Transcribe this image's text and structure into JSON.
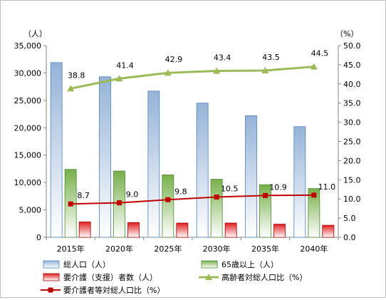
{
  "chart_data": {
    "type": "bar",
    "categories": [
      "2015年",
      "2020年",
      "2025年",
      "2030年",
      "2035年",
      "2040年"
    ],
    "y_left": {
      "unit": "（人）",
      "ylim": [
        0,
        35000
      ],
      "ticks": [
        "0",
        "5,000",
        "10,000",
        "15,000",
        "20,000",
        "25,000",
        "30,000",
        "35,000"
      ],
      "tick_values": [
        0,
        5000,
        10000,
        15000,
        20000,
        25000,
        30000,
        35000
      ]
    },
    "y_right": {
      "unit": "（%）",
      "ylim": [
        0,
        50
      ],
      "ticks": [
        "0.0",
        "5.0",
        "10.0",
        "15.0",
        "20.0",
        "25.0",
        "30.0",
        "35.0",
        "40.0",
        "45.0",
        "50.0"
      ],
      "tick_values": [
        0,
        5,
        10,
        15,
        20,
        25,
        30,
        35,
        40,
        45,
        50
      ]
    },
    "series": [
      {
        "name": "総人口（人）",
        "kind": "bar",
        "axis": "left",
        "color": "#95b3d7",
        "values": [
          31900,
          29300,
          26700,
          24500,
          22200,
          20200
        ]
      },
      {
        "name": "65歳以上（人）",
        "kind": "bar",
        "axis": "left",
        "color": "#77b04b",
        "values": [
          12400,
          12100,
          11400,
          10600,
          9600,
          8900
        ]
      },
      {
        "name": "要介護（支援）者数（人）",
        "kind": "bar",
        "axis": "left",
        "color": "#e02020",
        "values": [
          2800,
          2700,
          2600,
          2600,
          2400,
          2200
        ]
      },
      {
        "name": "高齢者対総人口比（%）",
        "kind": "line",
        "axis": "right",
        "color": "#9bbb59",
        "values": [
          38.8,
          41.4,
          42.9,
          43.4,
          43.5,
          44.5
        ],
        "labels": [
          "38.8",
          "41.4",
          "42.9",
          "43.4",
          "43.5",
          "44.5"
        ]
      },
      {
        "name": "要介護者等対総人口比（%）",
        "kind": "line",
        "axis": "right",
        "color": "#c00000",
        "values": [
          8.7,
          9.0,
          9.8,
          10.5,
          10.9,
          11.0
        ],
        "labels": [
          "8.7",
          "9.0",
          "9.8",
          "10.5",
          "10.9",
          "11.0"
        ]
      }
    ],
    "grid": false,
    "legend": "bottom"
  }
}
